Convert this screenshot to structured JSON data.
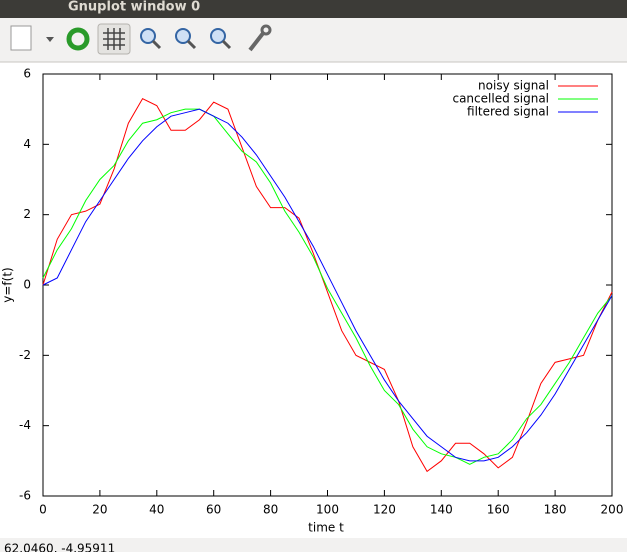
{
  "window_title": "Gnuplot window 0",
  "status": "62.0460, -4.95911",
  "chart_data": {
    "type": "line",
    "xlabel": "time t",
    "ylabel": "y=f(t)",
    "x": [
      0,
      5,
      10,
      15,
      20,
      25,
      30,
      35,
      40,
      45,
      50,
      55,
      60,
      65,
      70,
      75,
      80,
      85,
      90,
      95,
      100,
      105,
      110,
      115,
      120,
      125,
      130,
      135,
      140,
      145,
      150,
      155,
      160,
      165,
      170,
      175,
      180,
      185,
      190,
      195,
      200
    ],
    "series": [
      {
        "name": "noisy signal",
        "color": "#ff0000",
        "values": [
          0,
          1.3,
          2.0,
          2.1,
          2.3,
          3.3,
          4.6,
          5.3,
          5.1,
          4.4,
          4.4,
          4.7,
          5.2,
          5.0,
          3.9,
          2.8,
          2.2,
          2.2,
          1.9,
          0.9,
          -0.2,
          -1.3,
          -2.0,
          -2.2,
          -2.4,
          -3.3,
          -4.6,
          -5.3,
          -5.0,
          -4.5,
          -4.5,
          -4.8,
          -5.2,
          -4.9,
          -3.9,
          -2.8,
          -2.2,
          -2.1,
          -2.0,
          -1.0,
          -0.2
        ]
      },
      {
        "name": "cancelled signal",
        "color": "#00ff00",
        "values": [
          0.2,
          1.0,
          1.6,
          2.4,
          3.0,
          3.4,
          4.1,
          4.6,
          4.7,
          4.9,
          5.0,
          5.0,
          4.8,
          4.3,
          3.8,
          3.5,
          2.9,
          2.1,
          1.5,
          0.8,
          -0.1,
          -0.8,
          -1.5,
          -2.3,
          -3.0,
          -3.4,
          -4.1,
          -4.6,
          -4.8,
          -4.9,
          -5.1,
          -4.9,
          -4.8,
          -4.4,
          -3.8,
          -3.4,
          -2.8,
          -2.2,
          -1.5,
          -0.8,
          -0.3
        ]
      },
      {
        "name": "filtered signal",
        "color": "#0000ff",
        "values": [
          0,
          0.2,
          1.0,
          1.8,
          2.4,
          3.0,
          3.6,
          4.1,
          4.5,
          4.8,
          4.9,
          5.0,
          4.8,
          4.6,
          4.2,
          3.7,
          3.1,
          2.5,
          1.8,
          1.1,
          0.3,
          -0.5,
          -1.3,
          -2.0,
          -2.7,
          -3.3,
          -3.8,
          -4.3,
          -4.6,
          -4.9,
          -5.0,
          -5.0,
          -4.9,
          -4.6,
          -4.2,
          -3.7,
          -3.1,
          -2.4,
          -1.7,
          -1.0,
          -0.3
        ]
      }
    ],
    "xlim": [
      0,
      200
    ],
    "xticks": [
      0,
      20,
      40,
      60,
      80,
      100,
      120,
      140,
      160,
      180,
      200
    ],
    "ylim": [
      -6,
      6
    ],
    "yticks": [
      -6,
      -4,
      -2,
      0,
      2,
      4,
      6
    ],
    "legend": "upper right"
  }
}
